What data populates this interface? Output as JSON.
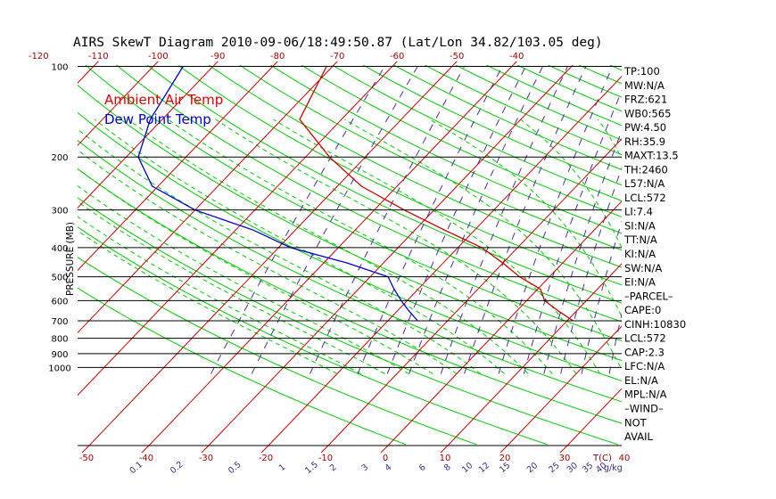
{
  "chart_data": {
    "type": "line",
    "title": "AIRS SkewT Diagram 2010-09-06/18:49:50.87 (Lat/Lon 34.82/103.05 deg)",
    "ylabel": "PRESSURE (MB)",
    "t_axis_label": "T(C)",
    "mixing_ratio_label": "g/kg",
    "pressure_ticks": [
      100,
      200,
      300,
      400,
      500,
      600,
      700,
      800,
      900,
      1000
    ],
    "top_temp_ticks": [
      -120,
      -110,
      -100,
      -90,
      -80,
      -70,
      -60,
      -50,
      -40
    ],
    "bottom_temp_ticks": [
      -50,
      -40,
      -30,
      -20,
      -10,
      0,
      10,
      20,
      30,
      40
    ],
    "mixing_ratio_ticks": [
      0.1,
      0.2,
      0.5,
      1,
      1.5,
      2,
      3,
      4,
      6,
      8,
      10,
      12,
      15,
      20,
      25,
      30,
      35,
      40
    ],
    "legend": [
      {
        "label": "Ambient Air Temp",
        "color": "#dd0000"
      },
      {
        "label": "Dew Point Temp",
        "color": "#0000cc"
      }
    ],
    "series": [
      {
        "name": "Ambient Air Temp",
        "color": "#cc0000",
        "pressure": [
          100,
          150,
          200,
          250,
          300,
          350,
          400,
          450,
          500,
          550,
          600,
          650,
          700
        ],
        "temperature": [
          -71,
          -67,
          -56,
          -46,
          -35,
          -25,
          -16,
          -10,
          -5,
          0.5,
          3,
          7,
          11
        ]
      },
      {
        "name": "Dew Point Temp",
        "color": "#0000cc",
        "pressure": [
          100,
          150,
          200,
          250,
          300,
          350,
          400,
          450,
          500,
          550,
          600,
          650,
          700
        ],
        "temperature": [
          -95,
          -92,
          -88,
          -81,
          -70,
          -57,
          -48,
          -36,
          -27,
          -24,
          -21,
          -18,
          -15
        ]
      }
    ],
    "indices": [
      "TP:100",
      "MW:N/A",
      "FRZ:621",
      "WB0:565",
      "PW:4.50",
      "RH:35.9",
      "MAXT:13.5",
      "TH:2460",
      "L57:N/A",
      "LCL:572",
      "LI:7.4",
      "SI:N/A",
      "TT:N/A",
      "KI:N/A",
      "SW:N/A",
      "EI:N/A",
      "–PARCEL–",
      "CAPE:0",
      "CINH:10830",
      "LCL:572",
      "CAP:2.3",
      "LFC:N/A",
      "EL:N/A",
      "MPL:N/A",
      "–WIND–",
      "NOT",
      "AVAIL"
    ]
  }
}
